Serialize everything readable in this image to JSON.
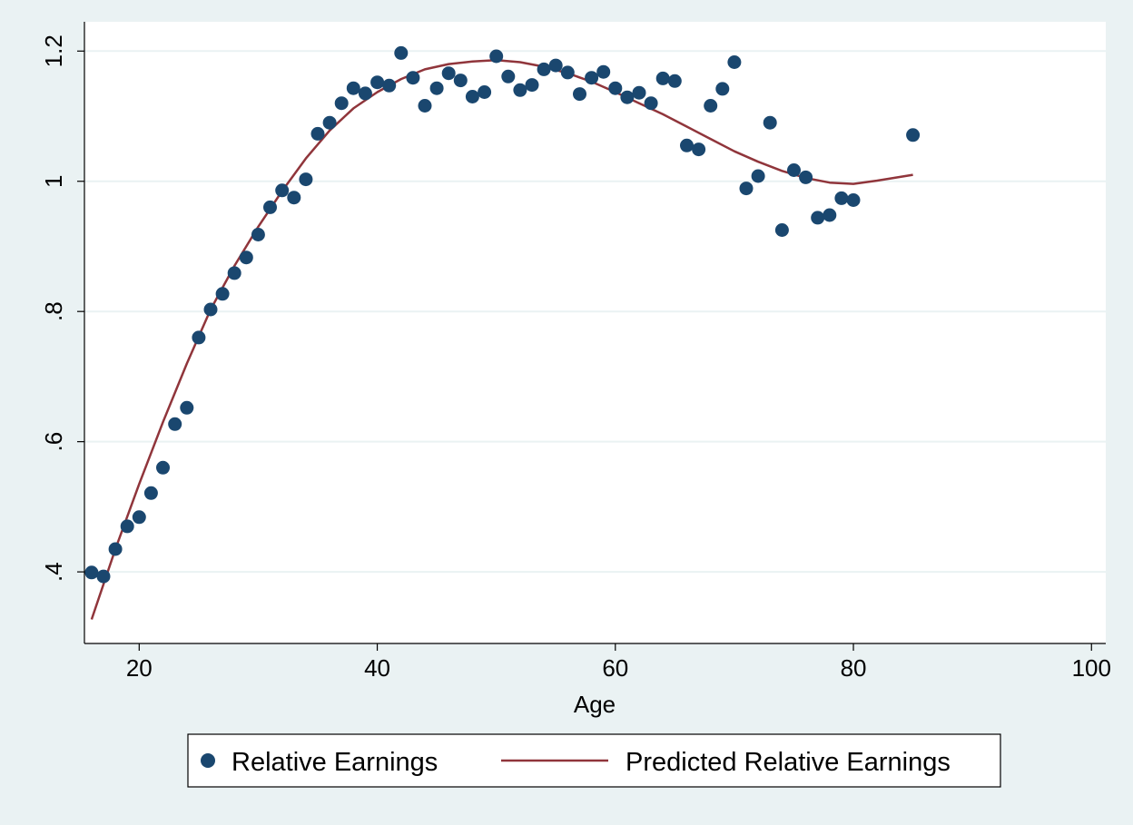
{
  "chart_data": {
    "type": "scatter",
    "title": "",
    "xlabel": "Age",
    "ylabel": "",
    "xlim": [
      15.4,
      101.2
    ],
    "ylim": [
      0.29,
      1.245
    ],
    "x_ticks": [
      20,
      40,
      60,
      80,
      100
    ],
    "x_tick_labels": [
      "20",
      "40",
      "60",
      "80",
      "100"
    ],
    "y_ticks": [
      0.4,
      0.6,
      0.8,
      1.0,
      1.2
    ],
    "y_tick_labels": [
      ".4",
      ".6",
      ".8",
      "1",
      "1.2"
    ],
    "grid": true,
    "legend_position": "bottom",
    "colors": {
      "background": "#eaf2f3",
      "plot_area": "#ffffff",
      "gridline": "#eaf2f3",
      "markers": "#1a476f",
      "fit_line": "#90353b"
    },
    "series": [
      {
        "name": "Relative Earnings",
        "type": "scatter",
        "x": [
          16,
          17,
          18,
          19,
          20,
          21,
          22,
          23,
          24,
          25,
          26,
          27,
          28,
          29,
          30,
          31,
          32,
          33,
          34,
          35,
          36,
          37,
          38,
          39,
          40,
          41,
          42,
          43,
          44,
          45,
          46,
          47,
          48,
          49,
          50,
          51,
          52,
          53,
          54,
          55,
          56,
          57,
          58,
          59,
          60,
          61,
          62,
          63,
          64,
          65,
          66,
          67,
          68,
          69,
          70,
          71,
          72,
          73,
          74,
          75,
          76,
          77,
          78,
          79,
          80,
          85
        ],
        "y": [
          0.399,
          0.393,
          0.435,
          0.47,
          0.484,
          0.521,
          0.56,
          0.627,
          0.652,
          0.76,
          0.803,
          0.827,
          0.859,
          0.883,
          0.918,
          0.96,
          0.986,
          0.975,
          1.003,
          1.073,
          1.09,
          1.12,
          1.143,
          1.135,
          1.152,
          1.147,
          1.197,
          1.159,
          1.116,
          1.143,
          1.166,
          1.155,
          1.13,
          1.137,
          1.192,
          1.161,
          1.14,
          1.148,
          1.172,
          1.178,
          1.167,
          1.134,
          1.159,
          1.168,
          1.143,
          1.129,
          1.136,
          1.12,
          1.158,
          1.154,
          1.055,
          1.049,
          1.116,
          1.142,
          1.183,
          0.989,
          1.008,
          1.09,
          0.925,
          1.017,
          1.006,
          0.944,
          0.948,
          0.974,
          0.971,
          1.071
        ]
      },
      {
        "name": "Predicted Relative Earnings",
        "type": "line",
        "x": [
          16,
          18,
          20,
          22,
          24,
          26,
          28,
          30,
          32,
          34,
          36,
          38,
          40,
          42,
          44,
          46,
          48,
          50,
          52,
          54,
          56,
          58,
          60,
          62,
          64,
          66,
          68,
          70,
          72,
          74,
          76,
          78,
          80,
          82,
          85
        ],
        "y": [
          0.327,
          0.435,
          0.535,
          0.63,
          0.72,
          0.803,
          0.87,
          0.93,
          0.985,
          1.035,
          1.078,
          1.112,
          1.137,
          1.157,
          1.172,
          1.18,
          1.184,
          1.186,
          1.183,
          1.176,
          1.166,
          1.153,
          1.137,
          1.12,
          1.103,
          1.084,
          1.065,
          1.046,
          1.03,
          1.016,
          1.005,
          0.998,
          0.996,
          1.001,
          1.01
        ]
      }
    ],
    "legend": [
      {
        "label": "Relative Earnings",
        "symbol": "marker"
      },
      {
        "label": "Predicted Relative Earnings",
        "symbol": "line"
      }
    ]
  }
}
